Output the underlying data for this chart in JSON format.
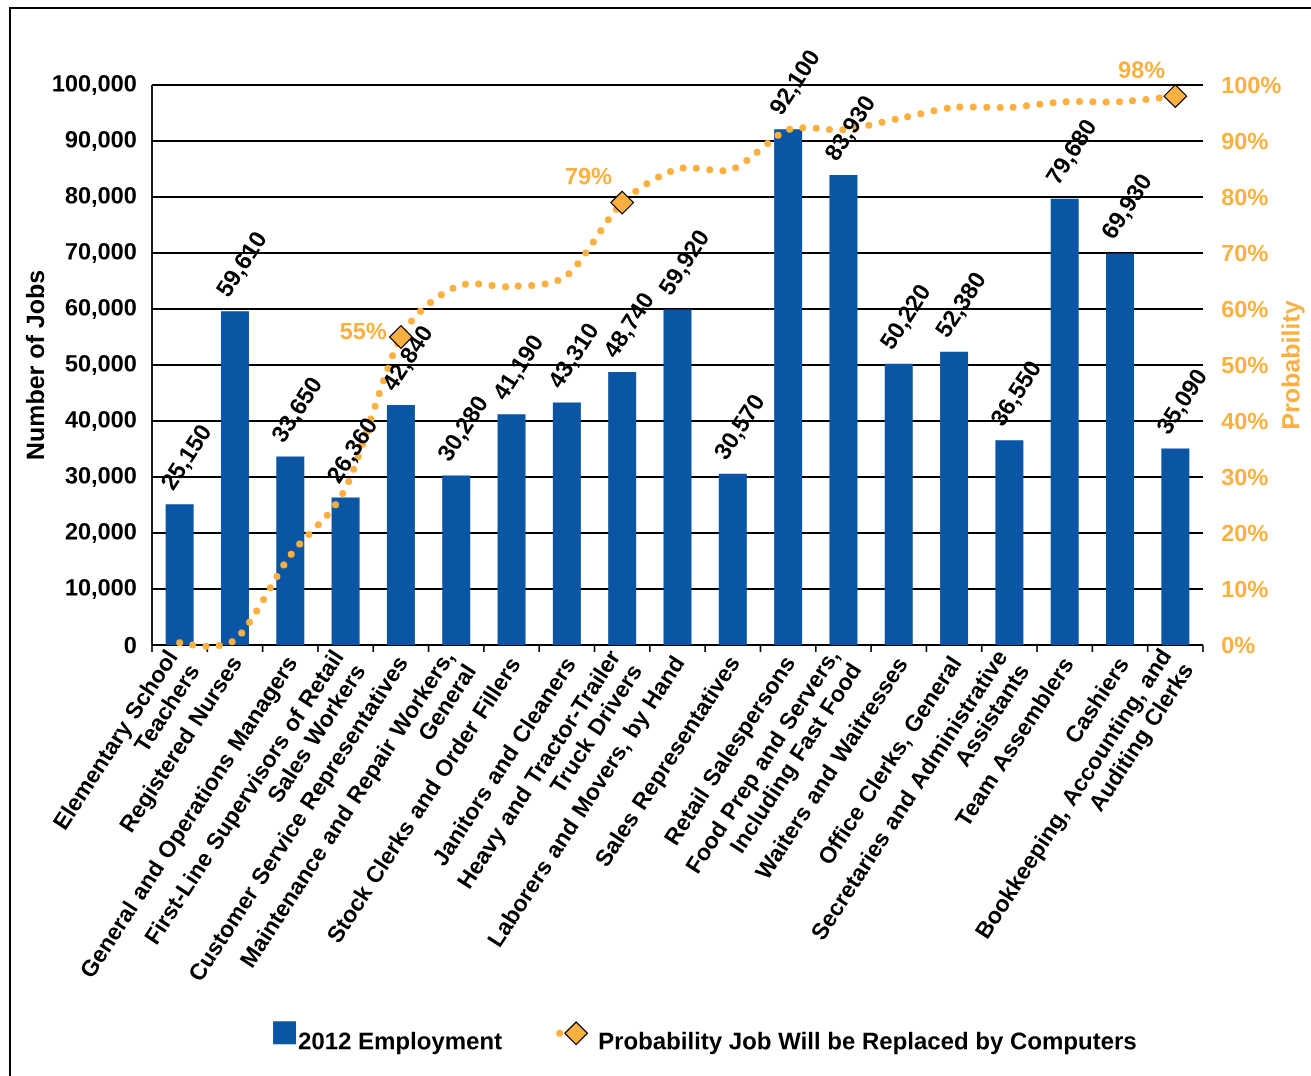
{
  "chart_data": {
    "type": "bar",
    "categories": [
      "Elementary School\nTeachers",
      "Registered Nurses",
      "General and Operations Managers",
      "First-Line Supervisors of Retail\nSales Workers",
      "Customer Service Representatives",
      "Maintenance and Repair Workers,\nGeneral",
      "Stock Clerks and Order Fillers",
      "Janitors and Cleaners",
      "Heavy and Tractor-Trailer\nTruck Drivers",
      "Laborers and Movers, by Hand",
      "Sales Representatives",
      "Retail Salespersons",
      "Food Prep and Servers,\nIncluding Fast Food",
      "Waiters and Waitresses",
      "Office Clerks, General",
      "Secretaries and Administrative\nAssistants",
      "Team Assemblers",
      "Cashiers",
      "Bookkeeping, Accounting, and\nAuditing Clerks"
    ],
    "ylabel": "Number of Jobs",
    "y2label": "Probability",
    "ylim": [
      0,
      100000
    ],
    "yticks": [
      0,
      {
        "value": 10000,
        "label": "10,000"
      },
      {
        "value": 20000,
        "label": "20,000"
      },
      {
        "value": 30000,
        "label": "30,000"
      },
      {
        "value": 40000,
        "label": "40,000"
      },
      {
        "value": 50000,
        "label": "50,000"
      },
      {
        "value": 60000,
        "label": "60,000"
      },
      {
        "value": 70000,
        "label": "70,000"
      },
      {
        "value": 80000,
        "label": "80,000"
      },
      {
        "value": 90000,
        "label": "90,000"
      },
      {
        "value": 100000,
        "label": "100,000"
      }
    ],
    "y2lim": [
      0,
      100
    ],
    "y2ticks": [
      {
        "value": 0,
        "label": "0%"
      },
      {
        "value": 10,
        "label": "10%"
      },
      {
        "value": 20,
        "label": "20%"
      },
      {
        "value": 30,
        "label": "30%"
      },
      {
        "value": 40,
        "label": "40%"
      },
      {
        "value": 50,
        "label": "50%"
      },
      {
        "value": 60,
        "label": "60%"
      },
      {
        "value": 70,
        "label": "70%"
      },
      {
        "value": 80,
        "label": "80%"
      },
      {
        "value": 90,
        "label": "90%"
      },
      {
        "value": 100,
        "label": "100%"
      }
    ],
    "grid": "y",
    "legend": "bottom",
    "series": [
      {
        "name": "2012 Employment",
        "color": "#0A56A5",
        "values": [
          25150,
          59610,
          33650,
          26360,
          42840,
          30280,
          41190,
          43310,
          48740,
          59920,
          30570,
          92100,
          83930,
          50220,
          52380,
          36550,
          79680,
          69930,
          35090
        ],
        "value_labels": [
          "25,150",
          "59,610",
          "33,650",
          "26,360",
          "42,840",
          "30,280",
          "41,190",
          "43,310",
          "48,740",
          "59,920",
          "30,570",
          "92,100",
          "83,930",
          "50,220",
          "52,380",
          "36,550",
          "79,680",
          "69,930",
          "35,090"
        ]
      },
      {
        "name": "Probability Job Will be Replaced by Computers",
        "type": "line",
        "axis": "y2",
        "color": "#FBB040",
        "line_style": "dotted",
        "values": [
          0.4,
          0.9,
          16,
          28,
          55,
          64,
          64,
          66,
          79,
          85,
          85,
          92,
          92,
          94,
          96,
          96,
          97,
          97,
          98
        ]
      },
      {
        "type": "scatter",
        "axis": "y2",
        "color": "#FBB040",
        "marker": "diamond",
        "values": [
          null,
          null,
          null,
          null,
          55,
          null,
          null,
          null,
          79,
          null,
          null,
          null,
          null,
          null,
          null,
          null,
          null,
          null,
          98
        ],
        "value_labels": [
          null,
          null,
          null,
          null,
          "55%",
          null,
          null,
          null,
          "79%",
          null,
          null,
          null,
          null,
          null,
          null,
          null,
          null,
          null,
          "98%"
        ]
      }
    ]
  }
}
